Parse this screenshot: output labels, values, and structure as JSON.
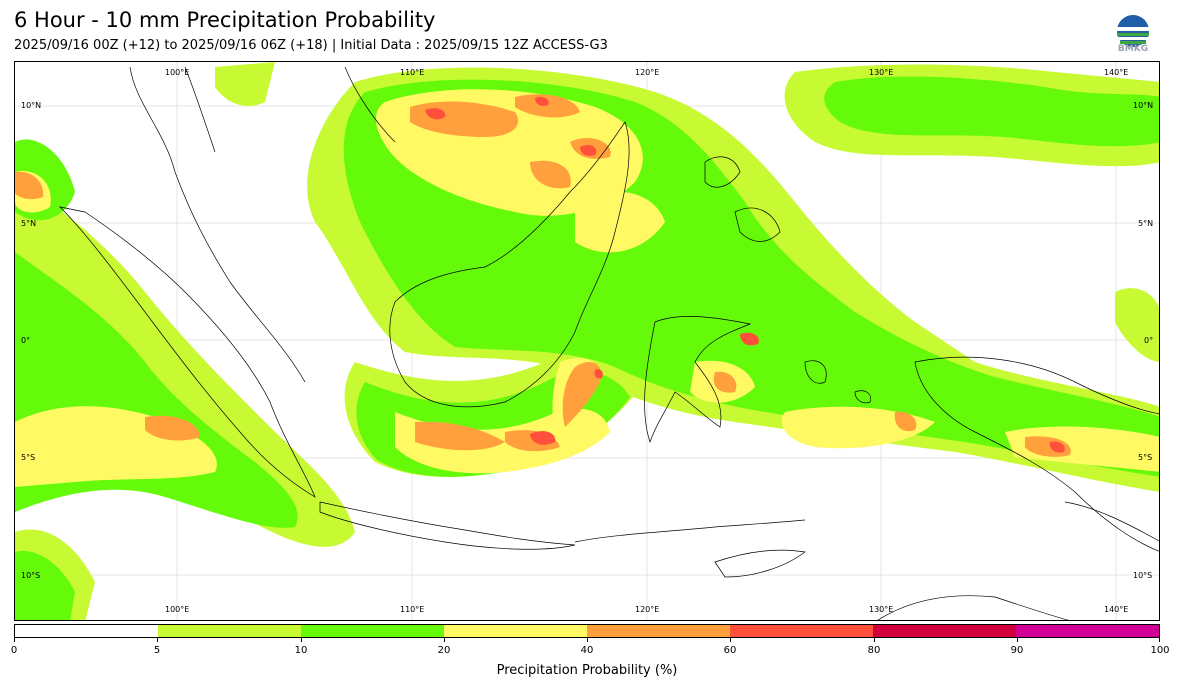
{
  "header": {
    "title": "6 Hour - 10 mm Precipitation Probability",
    "subtitle": "2025/09/16 00Z (+12) to 2025/09/16 06Z (+18) | Initial Data : 2025/09/15 12Z ACCESS-G3",
    "logo_text": "BMKG"
  },
  "map": {
    "longitude_labels": [
      "100°E",
      "110°E",
      "120°E",
      "130°E",
      "140°E"
    ],
    "latitude_labels": [
      "10°N",
      "5°N",
      "0°",
      "5°S",
      "10°S"
    ],
    "colors": {
      "p5_10": "#c8fa34",
      "p10_20": "#64fa0a",
      "p20_40": "#fffa64",
      "p40_60": "#ffa03c",
      "p60_80": "#ff503c",
      "coast": "#000000"
    }
  },
  "colorbar": {
    "title": "Precipitation Probability (%)",
    "ticks": [
      "0",
      "5",
      "10",
      "20",
      "40",
      "60",
      "80",
      "90",
      "100"
    ],
    "colors": [
      "#ffffff",
      "#c8fa34",
      "#64fa0a",
      "#fffa64",
      "#ffa03c",
      "#ff503c",
      "#d2003c",
      "#d20096"
    ]
  }
}
